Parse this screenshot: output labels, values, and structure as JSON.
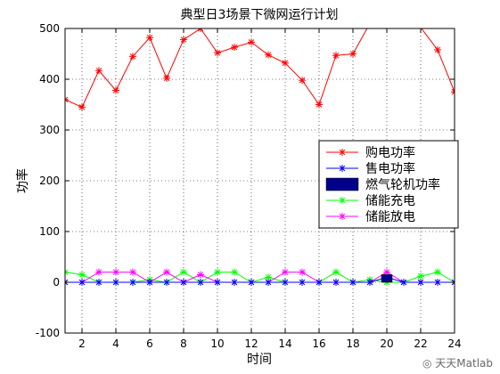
{
  "chart_data": {
    "type": "line",
    "title": "典型日3场景下微网运行计划",
    "xlabel": "时间",
    "ylabel": "功率",
    "xlim": [
      1,
      24
    ],
    "ylim": [
      -100,
      500
    ],
    "xticks": [
      2,
      4,
      6,
      8,
      10,
      12,
      14,
      16,
      18,
      20,
      22,
      24
    ],
    "yticks": [
      -100,
      0,
      100,
      200,
      300,
      400,
      500
    ],
    "grid": true,
    "legend_position": "right",
    "x": [
      1,
      2,
      3,
      4,
      5,
      6,
      7,
      8,
      9,
      10,
      11,
      12,
      13,
      14,
      15,
      16,
      17,
      18,
      19,
      20,
      21,
      22,
      23,
      24
    ],
    "series": [
      {
        "name": "购电功率",
        "color": "#ff0000",
        "marker": "star",
        "values": [
          360,
          345,
          417,
          378,
          445,
          482,
          402,
          478,
          500,
          452,
          463,
          473,
          448,
          432,
          398,
          350,
          447,
          450,
          510,
          510,
          510,
          502,
          458,
          375
        ]
      },
      {
        "name": "售电功率",
        "color": "#0000ff",
        "marker": "star",
        "values": [
          0,
          0,
          0,
          0,
          0,
          0,
          0,
          0,
          0,
          0,
          0,
          0,
          0,
          0,
          0,
          0,
          0,
          0,
          0,
          10,
          0,
          0,
          0,
          0
        ]
      },
      {
        "name": "燃气轮机功率",
        "color": "#00008b",
        "marker": "bar",
        "values": [
          0,
          0,
          0,
          0,
          0,
          0,
          0,
          0,
          0,
          0,
          0,
          0,
          0,
          0,
          0,
          0,
          0,
          0,
          0,
          15,
          0,
          0,
          0,
          0
        ]
      },
      {
        "name": "储能充电",
        "color": "#00ff00",
        "marker": "star",
        "values": [
          20,
          15,
          0,
          0,
          0,
          5,
          0,
          20,
          0,
          20,
          20,
          0,
          10,
          0,
          0,
          0,
          20,
          0,
          5,
          0,
          0,
          12,
          20,
          0
        ]
      },
      {
        "name": "储能放电",
        "color": "#ff00ff",
        "marker": "star",
        "values": [
          0,
          0,
          20,
          20,
          20,
          0,
          20,
          0,
          15,
          0,
          0,
          0,
          0,
          20,
          20,
          0,
          0,
          0,
          0,
          20,
          0,
          0,
          0,
          0
        ]
      }
    ]
  },
  "watermark": {
    "icon": "wechat-icon",
    "text": "天天Matlab"
  }
}
